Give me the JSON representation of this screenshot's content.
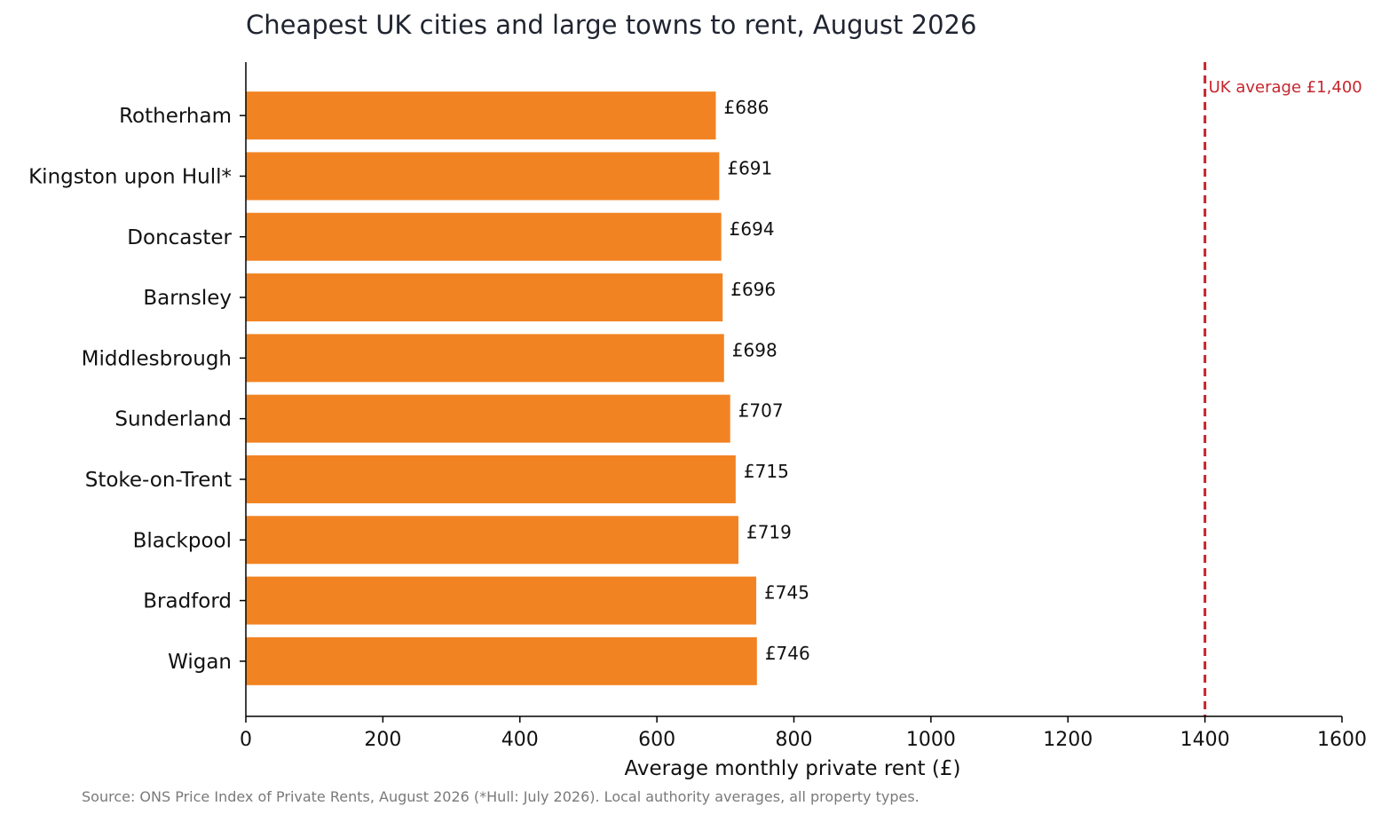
{
  "chart_data": {
    "type": "bar",
    "orientation": "horizontal",
    "title": "Cheapest UK cities and large towns to rent, August 2026",
    "xlabel": "Average monthly private rent (£)",
    "ylabel": "",
    "xlim": [
      0,
      1600
    ],
    "xticks": [
      0,
      200,
      400,
      600,
      800,
      1000,
      1200,
      1400,
      1600
    ],
    "grid": false,
    "categories": [
      "Rotherham",
      "Kingston upon Hull*",
      "Doncaster",
      "Barnsley",
      "Middlesbrough",
      "Sunderland",
      "Stoke-on-Trent",
      "Blackpool",
      "Bradford",
      "Wigan"
    ],
    "values": [
      686,
      691,
      694,
      696,
      698,
      707,
      715,
      719,
      745,
      746
    ],
    "value_labels": [
      "£686",
      "£691",
      "£694",
      "£696",
      "£698",
      "£707",
      "£715",
      "£719",
      "£745",
      "£746"
    ],
    "bar_color": "#f28322",
    "reference_line": {
      "value": 1400,
      "label": "UK average £1,400",
      "color": "#c6262e",
      "style": "dashed"
    },
    "source": "Source: ONS Price Index of Private Rents, August 2026 (*Hull: July 2026). Local authority averages, all property types."
  }
}
